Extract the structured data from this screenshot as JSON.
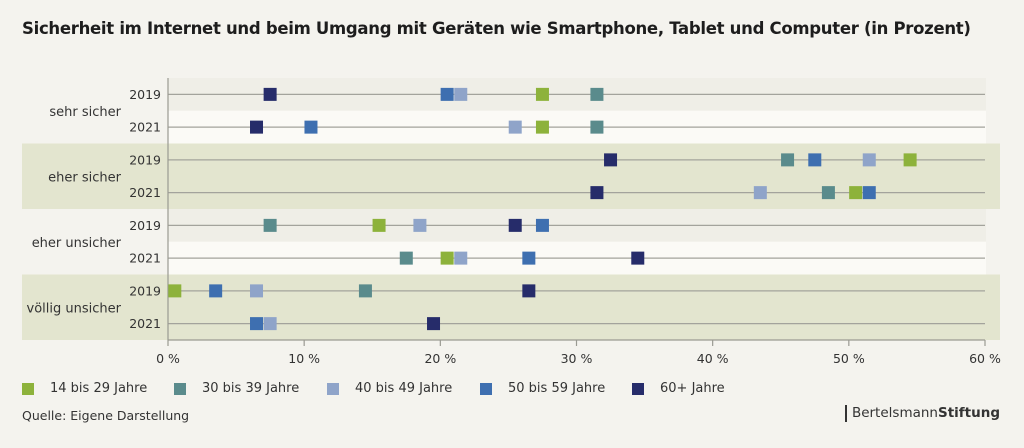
{
  "chart_data": {
    "type": "scatter",
    "title": "Sicherheit im Internet und beim Umgang mit Geräten wie Smartphone, Tablet und Computer (in Prozent)",
    "xlim": [
      0,
      60
    ],
    "xticks": [
      "0 %",
      "10 %",
      "20 %",
      "30 %",
      "40 %",
      "50 %",
      "60 %"
    ],
    "xtick_values": [
      0,
      10,
      20,
      30,
      40,
      50,
      60
    ],
    "grid": false,
    "legend_position": "bottom",
    "groups": [
      {
        "label": "sehr sicher",
        "shaded": false,
        "rows": [
          {
            "year": "2019",
            "values": [
              27.5,
              31.5,
              21.5,
              20.5,
              7.5
            ]
          },
          {
            "year": "2021",
            "values": [
              27.5,
              31.5,
              25.5,
              10.5,
              6.5
            ]
          }
        ]
      },
      {
        "label": "eher sicher",
        "shaded": true,
        "rows": [
          {
            "year": "2019",
            "values": [
              54.5,
              45.5,
              51.5,
              47.5,
              32.5
            ]
          },
          {
            "year": "2021",
            "values": [
              50.5,
              48.5,
              43.5,
              51.5,
              31.5
            ]
          }
        ]
      },
      {
        "label": "eher unsicher",
        "shaded": false,
        "rows": [
          {
            "year": "2019",
            "values": [
              15.5,
              7.5,
              18.5,
              27.5,
              25.5
            ]
          },
          {
            "year": "2021",
            "values": [
              20.5,
              17.5,
              21.5,
              26.5,
              34.5
            ]
          }
        ]
      },
      {
        "label": "völlig unsicher",
        "shaded": true,
        "rows": [
          {
            "year": "2019",
            "values": [
              0.5,
              14.5,
              6.5,
              3.5,
              26.5
            ]
          },
          {
            "year": "2021",
            "values": [
              null,
              null,
              7.5,
              6.5,
              19.5
            ]
          }
        ]
      }
    ],
    "series": [
      {
        "name": "14 bis 29 Jahre",
        "color": "#8db23b"
      },
      {
        "name": "30 bis 39 Jahre",
        "color": "#5a8b8c"
      },
      {
        "name": "40 bis 49 Jahre",
        "color": "#8fa4c9"
      },
      {
        "name": "50 bis 59 Jahre",
        "color": "#3e6fb0"
      },
      {
        "name": "60+ Jahre",
        "color": "#262c6a"
      }
    ]
  },
  "source": "Quelle: Eigene Darstellung",
  "brand": {
    "regular": "Bertelsmann",
    "bold": "Stiftung"
  }
}
